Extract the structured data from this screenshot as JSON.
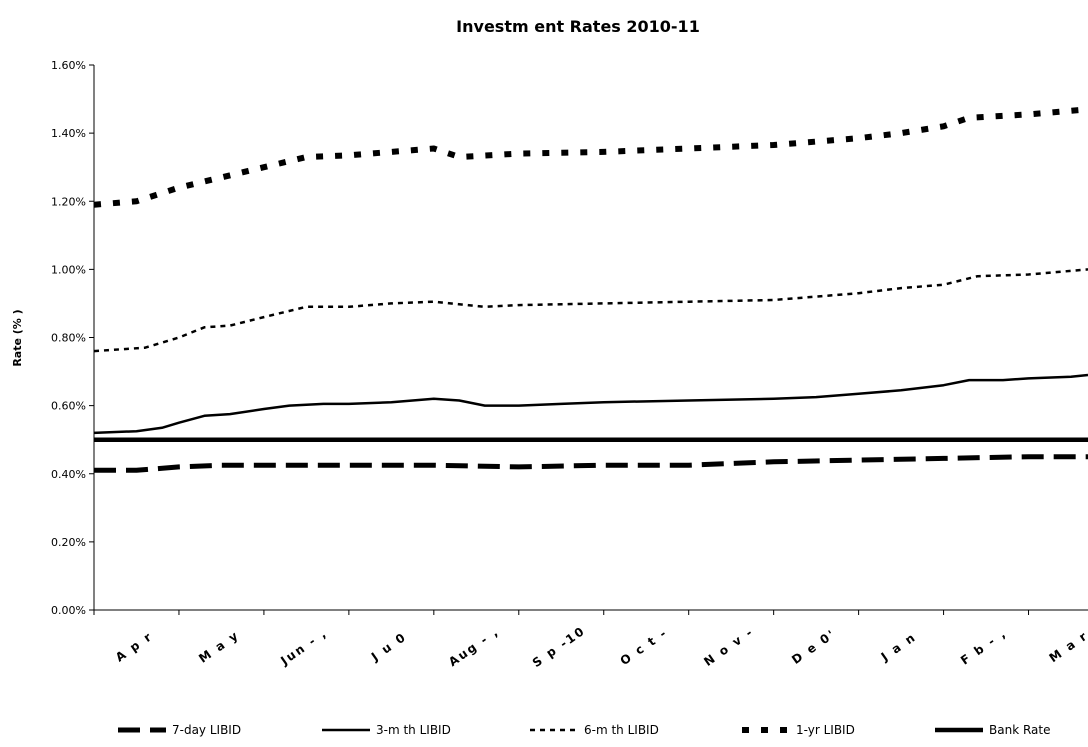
{
  "chart_data": {
    "type": "line",
    "title": "Investm ent Rates 2010-11",
    "xlabel": "",
    "ylabel": "Rate (% )",
    "ylim": [
      0,
      1.6
    ],
    "yticks": [
      "0.00%",
      "0.20%",
      "0.40%",
      "0.60%",
      "0.80%",
      "1.00%",
      "1.20%",
      "1.40%",
      "1.60%"
    ],
    "categories": [
      "A p r",
      "M a y",
      "Jun - ,",
      "J u 0",
      "Aug - ,",
      "S p -10",
      "O c t -",
      "N o v -",
      "D e 0'",
      "J a n",
      "F b - ,",
      "M a r"
    ],
    "grid": false,
    "legend_position": "bottom",
    "series": [
      {
        "name": "7-day LIBID",
        "color": "#000000",
        "style": "long-dash-thick",
        "points": [
          [
            0,
            0.41
          ],
          [
            0.5,
            0.41
          ],
          [
            1,
            0.42
          ],
          [
            1.5,
            0.425
          ],
          [
            2,
            0.425
          ],
          [
            3,
            0.425
          ],
          [
            4,
            0.425
          ],
          [
            5,
            0.42
          ],
          [
            6,
            0.425
          ],
          [
            7,
            0.425
          ],
          [
            8,
            0.435
          ],
          [
            9,
            0.44
          ],
          [
            10,
            0.445
          ],
          [
            11,
            0.45
          ],
          [
            11.7,
            0.45
          ]
        ]
      },
      {
        "name": "3-m th LIBID",
        "color": "#000000",
        "style": "solid-medium",
        "points": [
          [
            0,
            0.52
          ],
          [
            0.5,
            0.525
          ],
          [
            0.8,
            0.535
          ],
          [
            1,
            0.55
          ],
          [
            1.3,
            0.57
          ],
          [
            1.6,
            0.575
          ],
          [
            2,
            0.59
          ],
          [
            2.3,
            0.6
          ],
          [
            2.7,
            0.605
          ],
          [
            3,
            0.605
          ],
          [
            3.5,
            0.61
          ],
          [
            4,
            0.62
          ],
          [
            4.3,
            0.615
          ],
          [
            4.6,
            0.6
          ],
          [
            5,
            0.6
          ],
          [
            5.5,
            0.605
          ],
          [
            6,
            0.61
          ],
          [
            7,
            0.615
          ],
          [
            8,
            0.62
          ],
          [
            8.5,
            0.625
          ],
          [
            9,
            0.635
          ],
          [
            9.5,
            0.645
          ],
          [
            10,
            0.66
          ],
          [
            10.3,
            0.675
          ],
          [
            10.7,
            0.675
          ],
          [
            11,
            0.68
          ],
          [
            11.5,
            0.685
          ],
          [
            11.7,
            0.69
          ]
        ]
      },
      {
        "name": "6-m th LIBID",
        "color": "#000000",
        "style": "short-dash",
        "points": [
          [
            0,
            0.76
          ],
          [
            0.6,
            0.77
          ],
          [
            1,
            0.8
          ],
          [
            1.3,
            0.83
          ],
          [
            1.6,
            0.835
          ],
          [
            2,
            0.86
          ],
          [
            2.5,
            0.89
          ],
          [
            3,
            0.89
          ],
          [
            3.5,
            0.9
          ],
          [
            4,
            0.905
          ],
          [
            4.6,
            0.89
          ],
          [
            5,
            0.895
          ],
          [
            6,
            0.9
          ],
          [
            7,
            0.905
          ],
          [
            8,
            0.91
          ],
          [
            9,
            0.93
          ],
          [
            9.5,
            0.945
          ],
          [
            10,
            0.955
          ],
          [
            10.4,
            0.98
          ],
          [
            11,
            0.985
          ],
          [
            11.7,
            1.0
          ]
        ]
      },
      {
        "name": "1-yr LIBID",
        "color": "#000000",
        "style": "square-dash-thick",
        "points": [
          [
            0,
            1.19
          ],
          [
            0.5,
            1.2
          ],
          [
            1,
            1.24
          ],
          [
            1.5,
            1.27
          ],
          [
            2,
            1.3
          ],
          [
            2.5,
            1.33
          ],
          [
            3,
            1.335
          ],
          [
            3.5,
            1.345
          ],
          [
            4,
            1.355
          ],
          [
            4.3,
            1.33
          ],
          [
            5,
            1.34
          ],
          [
            6,
            1.345
          ],
          [
            7,
            1.355
          ],
          [
            8,
            1.365
          ],
          [
            9,
            1.385
          ],
          [
            9.5,
            1.4
          ],
          [
            10,
            1.42
          ],
          [
            10.3,
            1.445
          ],
          [
            11,
            1.455
          ],
          [
            11.7,
            1.47
          ]
        ]
      },
      {
        "name": "Bank Rate",
        "color": "#000000",
        "style": "solid-thick",
        "points": [
          [
            0,
            0.5
          ],
          [
            11.7,
            0.5
          ]
        ]
      }
    ]
  }
}
